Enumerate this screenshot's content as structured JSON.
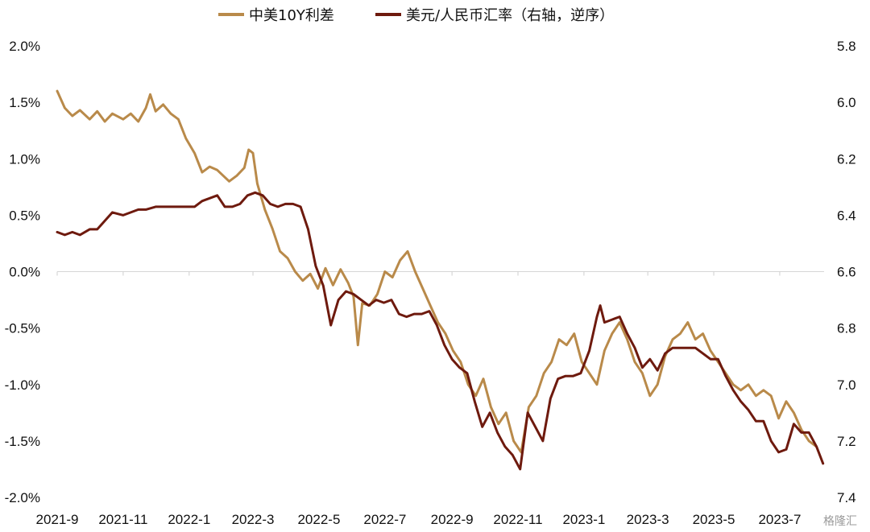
{
  "chart_data": {
    "type": "line",
    "x_ticks": [
      "2021-9",
      "2021-11",
      "2022-1",
      "2022-3",
      "2022-5",
      "2022-7",
      "2022-9",
      "2022-11",
      "2023-1",
      "2023-3",
      "2023-5",
      "2023-7"
    ],
    "y_left": {
      "range": [
        -2.0,
        2.0
      ],
      "ticks": [
        "2.0%",
        "1.5%",
        "1.0%",
        "0.5%",
        "0.0%",
        "-0.5%",
        "-1.0%",
        "-1.5%",
        "-2.0%"
      ]
    },
    "y_right": {
      "range": [
        5.8,
        7.4
      ],
      "reversed": true,
      "ticks": [
        "5.8",
        "6.0",
        "6.2",
        "6.4",
        "6.6",
        "6.8",
        "7.0",
        "7.2",
        "7.4"
      ]
    },
    "grid": false,
    "legend": "top-center",
    "series": [
      {
        "name": "中美10Y利差",
        "axis": "left",
        "color": "#b98a4a",
        "points": [
          [
            "2021-09-01",
            1.6
          ],
          [
            "2021-09-08",
            1.45
          ],
          [
            "2021-09-15",
            1.38
          ],
          [
            "2021-09-22",
            1.43
          ],
          [
            "2021-10-01",
            1.35
          ],
          [
            "2021-10-08",
            1.42
          ],
          [
            "2021-10-15",
            1.33
          ],
          [
            "2021-10-22",
            1.4
          ],
          [
            "2021-11-01",
            1.35
          ],
          [
            "2021-11-08",
            1.4
          ],
          [
            "2021-11-15",
            1.33
          ],
          [
            "2021-11-22",
            1.45
          ],
          [
            "2021-11-26",
            1.57
          ],
          [
            "2021-12-01",
            1.42
          ],
          [
            "2021-12-08",
            1.48
          ],
          [
            "2021-12-15",
            1.4
          ],
          [
            "2021-12-22",
            1.35
          ],
          [
            "2021-12-29",
            1.18
          ],
          [
            "2022-01-06",
            1.05
          ],
          [
            "2022-01-13",
            0.88
          ],
          [
            "2022-01-20",
            0.93
          ],
          [
            "2022-01-27",
            0.9
          ],
          [
            "2022-02-07",
            0.8
          ],
          [
            "2022-02-14",
            0.85
          ],
          [
            "2022-02-21",
            0.92
          ],
          [
            "2022-02-25",
            1.08
          ],
          [
            "2022-03-01",
            1.05
          ],
          [
            "2022-03-05",
            0.78
          ],
          [
            "2022-03-12",
            0.55
          ],
          [
            "2022-03-19",
            0.38
          ],
          [
            "2022-03-26",
            0.18
          ],
          [
            "2022-04-02",
            0.12
          ],
          [
            "2022-04-09",
            0.0
          ],
          [
            "2022-04-16",
            -0.08
          ],
          [
            "2022-04-23",
            -0.02
          ],
          [
            "2022-04-30",
            -0.15
          ],
          [
            "2022-05-07",
            0.03
          ],
          [
            "2022-05-14",
            -0.12
          ],
          [
            "2022-05-21",
            0.02
          ],
          [
            "2022-05-28",
            -0.1
          ],
          [
            "2022-06-02",
            -0.22
          ],
          [
            "2022-06-06",
            -0.65
          ],
          [
            "2022-06-10",
            -0.28
          ],
          [
            "2022-06-17",
            -0.3
          ],
          [
            "2022-06-24",
            -0.2
          ],
          [
            "2022-07-01",
            0.0
          ],
          [
            "2022-07-08",
            -0.05
          ],
          [
            "2022-07-15",
            0.1
          ],
          [
            "2022-07-22",
            0.18
          ],
          [
            "2022-07-29",
            0.0
          ],
          [
            "2022-08-05",
            -0.15
          ],
          [
            "2022-08-12",
            -0.3
          ],
          [
            "2022-08-19",
            -0.45
          ],
          [
            "2022-08-26",
            -0.55
          ],
          [
            "2022-09-02",
            -0.7
          ],
          [
            "2022-09-09",
            -0.8
          ],
          [
            "2022-09-16",
            -1.0
          ],
          [
            "2022-09-23",
            -1.1
          ],
          [
            "2022-09-30",
            -0.95
          ],
          [
            "2022-10-07",
            -1.2
          ],
          [
            "2022-10-14",
            -1.35
          ],
          [
            "2022-10-21",
            -1.25
          ],
          [
            "2022-10-28",
            -1.5
          ],
          [
            "2022-11-04",
            -1.6
          ],
          [
            "2022-11-11",
            -1.2
          ],
          [
            "2022-11-18",
            -1.1
          ],
          [
            "2022-11-25",
            -0.9
          ],
          [
            "2022-12-02",
            -0.8
          ],
          [
            "2022-12-09",
            -0.6
          ],
          [
            "2022-12-16",
            -0.65
          ],
          [
            "2022-12-23",
            -0.55
          ],
          [
            "2022-12-30",
            -0.8
          ],
          [
            "2023-01-06",
            -0.9
          ],
          [
            "2023-01-13",
            -1.0
          ],
          [
            "2023-01-20",
            -0.7
          ],
          [
            "2023-01-27",
            -0.55
          ],
          [
            "2023-02-03",
            -0.45
          ],
          [
            "2023-02-10",
            -0.6
          ],
          [
            "2023-02-17",
            -0.8
          ],
          [
            "2023-02-24",
            -0.9
          ],
          [
            "2023-03-03",
            -1.1
          ],
          [
            "2023-03-10",
            -1.0
          ],
          [
            "2023-03-17",
            -0.75
          ],
          [
            "2023-03-24",
            -0.6
          ],
          [
            "2023-03-31",
            -0.55
          ],
          [
            "2023-04-07",
            -0.45
          ],
          [
            "2023-04-14",
            -0.6
          ],
          [
            "2023-04-21",
            -0.55
          ],
          [
            "2023-04-28",
            -0.7
          ],
          [
            "2023-05-05",
            -0.8
          ],
          [
            "2023-05-12",
            -0.9
          ],
          [
            "2023-05-19",
            -1.0
          ],
          [
            "2023-05-26",
            -1.05
          ],
          [
            "2023-06-02",
            -1.0
          ],
          [
            "2023-06-09",
            -1.1
          ],
          [
            "2023-06-16",
            -1.05
          ],
          [
            "2023-06-23",
            -1.1
          ],
          [
            "2023-06-30",
            -1.3
          ],
          [
            "2023-07-07",
            -1.15
          ],
          [
            "2023-07-14",
            -1.25
          ],
          [
            "2023-07-21",
            -1.4
          ],
          [
            "2023-07-28",
            -1.5
          ],
          [
            "2023-08-04",
            -1.55
          ]
        ]
      },
      {
        "name": "美元/人民币汇率（右轴，逆序）",
        "axis": "right",
        "color": "#6e1a0e",
        "points": [
          [
            "2021-09-01",
            6.46
          ],
          [
            "2021-09-08",
            6.47
          ],
          [
            "2021-09-15",
            6.46
          ],
          [
            "2021-09-22",
            6.47
          ],
          [
            "2021-10-01",
            6.45
          ],
          [
            "2021-10-08",
            6.45
          ],
          [
            "2021-10-15",
            6.42
          ],
          [
            "2021-10-22",
            6.39
          ],
          [
            "2021-11-01",
            6.4
          ],
          [
            "2021-11-08",
            6.39
          ],
          [
            "2021-11-15",
            6.38
          ],
          [
            "2021-11-22",
            6.38
          ],
          [
            "2021-12-01",
            6.37
          ],
          [
            "2021-12-08",
            6.37
          ],
          [
            "2021-12-15",
            6.37
          ],
          [
            "2021-12-22",
            6.37
          ],
          [
            "2021-12-29",
            6.37
          ],
          [
            "2022-01-06",
            6.37
          ],
          [
            "2022-01-13",
            6.35
          ],
          [
            "2022-01-20",
            6.34
          ],
          [
            "2022-01-27",
            6.33
          ],
          [
            "2022-02-03",
            6.37
          ],
          [
            "2022-02-10",
            6.37
          ],
          [
            "2022-02-17",
            6.36
          ],
          [
            "2022-02-24",
            6.33
          ],
          [
            "2022-03-03",
            6.32
          ],
          [
            "2022-03-10",
            6.33
          ],
          [
            "2022-03-17",
            6.36
          ],
          [
            "2022-03-24",
            6.37
          ],
          [
            "2022-03-31",
            6.36
          ],
          [
            "2022-04-07",
            6.36
          ],
          [
            "2022-04-14",
            6.37
          ],
          [
            "2022-04-21",
            6.45
          ],
          [
            "2022-04-28",
            6.58
          ],
          [
            "2022-05-05",
            6.65
          ],
          [
            "2022-05-12",
            6.79
          ],
          [
            "2022-05-19",
            6.7
          ],
          [
            "2022-05-26",
            6.67
          ],
          [
            "2022-06-02",
            6.68
          ],
          [
            "2022-06-09",
            6.7
          ],
          [
            "2022-06-16",
            6.72
          ],
          [
            "2022-06-23",
            6.7
          ],
          [
            "2022-06-30",
            6.71
          ],
          [
            "2022-07-07",
            6.7
          ],
          [
            "2022-07-14",
            6.75
          ],
          [
            "2022-07-21",
            6.76
          ],
          [
            "2022-07-28",
            6.75
          ],
          [
            "2022-08-04",
            6.75
          ],
          [
            "2022-08-11",
            6.74
          ],
          [
            "2022-08-18",
            6.79
          ],
          [
            "2022-08-25",
            6.86
          ],
          [
            "2022-09-01",
            6.91
          ],
          [
            "2022-09-08",
            6.94
          ],
          [
            "2022-09-15",
            6.96
          ],
          [
            "2022-09-22",
            7.06
          ],
          [
            "2022-09-29",
            7.15
          ],
          [
            "2022-10-06",
            7.1
          ],
          [
            "2022-10-13",
            7.17
          ],
          [
            "2022-10-20",
            7.22
          ],
          [
            "2022-10-27",
            7.25
          ],
          [
            "2022-11-03",
            7.3
          ],
          [
            "2022-11-10",
            7.1
          ],
          [
            "2022-11-17",
            7.15
          ],
          [
            "2022-11-24",
            7.2
          ],
          [
            "2022-12-01",
            7.05
          ],
          [
            "2022-12-08",
            6.98
          ],
          [
            "2022-12-15",
            6.97
          ],
          [
            "2022-12-22",
            6.97
          ],
          [
            "2022-12-29",
            6.96
          ],
          [
            "2023-01-06",
            6.88
          ],
          [
            "2023-01-13",
            6.76
          ],
          [
            "2023-01-16",
            6.72
          ],
          [
            "2023-01-20",
            6.78
          ],
          [
            "2023-01-27",
            6.77
          ],
          [
            "2023-02-03",
            6.76
          ],
          [
            "2023-02-10",
            6.82
          ],
          [
            "2023-02-17",
            6.87
          ],
          [
            "2023-02-24",
            6.94
          ],
          [
            "2023-03-03",
            6.91
          ],
          [
            "2023-03-10",
            6.95
          ],
          [
            "2023-03-17",
            6.89
          ],
          [
            "2023-03-24",
            6.87
          ],
          [
            "2023-03-31",
            6.87
          ],
          [
            "2023-04-07",
            6.87
          ],
          [
            "2023-04-14",
            6.87
          ],
          [
            "2023-04-21",
            6.89
          ],
          [
            "2023-04-28",
            6.91
          ],
          [
            "2023-05-05",
            6.91
          ],
          [
            "2023-05-12",
            6.97
          ],
          [
            "2023-05-19",
            7.02
          ],
          [
            "2023-05-26",
            7.06
          ],
          [
            "2023-06-02",
            7.09
          ],
          [
            "2023-06-09",
            7.13
          ],
          [
            "2023-06-16",
            7.13
          ],
          [
            "2023-06-23",
            7.2
          ],
          [
            "2023-06-30",
            7.24
          ],
          [
            "2023-07-07",
            7.23
          ],
          [
            "2023-07-14",
            7.14
          ],
          [
            "2023-07-21",
            7.17
          ],
          [
            "2023-07-28",
            7.17
          ],
          [
            "2023-08-04",
            7.22
          ],
          [
            "2023-08-10",
            7.28
          ]
        ]
      }
    ]
  },
  "watermark": "格隆汇"
}
